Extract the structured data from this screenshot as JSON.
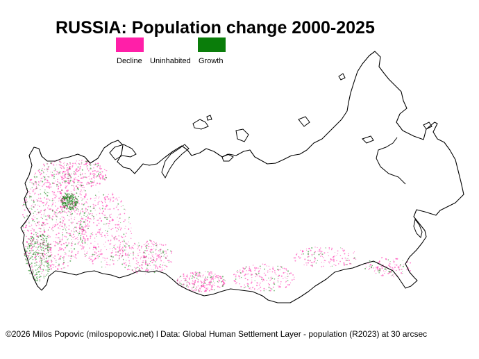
{
  "title": "RUSSIA: Population change 2000-2025",
  "legend": {
    "decline": {
      "label": "Decline",
      "color": "#ff1fa8"
    },
    "uninhabited": {
      "label": "Uninhabited",
      "color": "#ffffff"
    },
    "growth": {
      "label": "Growth",
      "color": "#0a7d0a"
    }
  },
  "caption": "©2026 Milos Popovic (milospopovic.net) l Data: Global Human Settlement Layer - population (R2023) at 30 arcsec",
  "map": {
    "region": "Russia",
    "border_color": "#000000"
  }
}
